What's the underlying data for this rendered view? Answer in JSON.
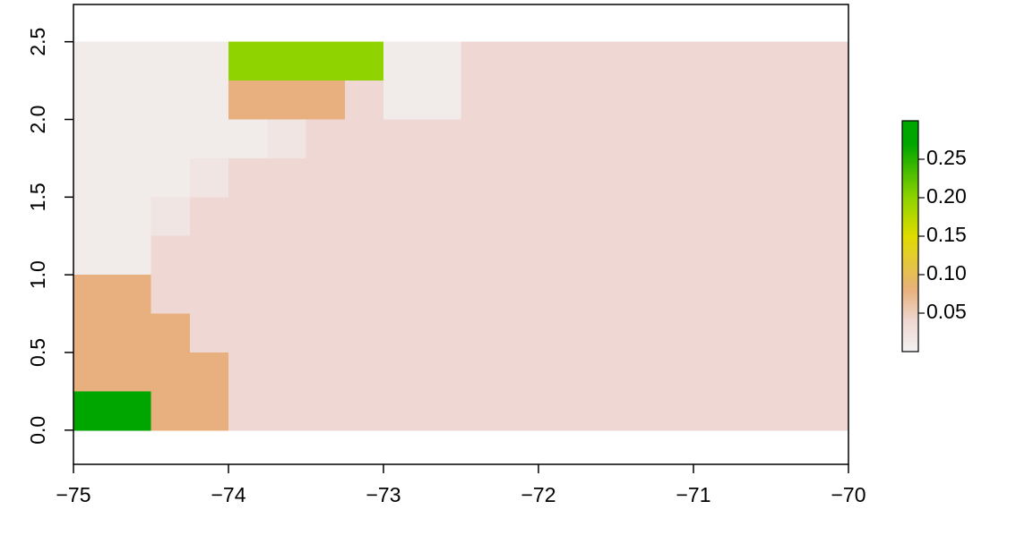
{
  "chart_data": {
    "type": "heatmap",
    "x": [
      -74.875,
      -74.625,
      -74.375,
      -74.125,
      -73.875,
      -73.625,
      -73.375,
      -73.125,
      -72.875,
      -72.625,
      -72.375,
      -72.125,
      -71.875,
      -71.625,
      -71.375,
      -71.125,
      -70.875,
      -70.625,
      -70.375,
      -70.125
    ],
    "y": [
      2.375,
      2.125,
      1.875,
      1.625,
      1.375,
      1.125,
      0.875,
      0.625,
      0.375,
      0.125
    ],
    "values": [
      [
        0.01,
        0.01,
        0.01,
        0.01,
        0.2,
        0.2,
        0.2,
        0.2,
        0.01,
        0.01,
        0.04,
        0.04,
        0.04,
        0.04,
        0.04,
        0.04,
        0.04,
        0.04,
        0.04,
        0.04
      ],
      [
        0.01,
        0.01,
        0.01,
        0.01,
        0.08,
        0.08,
        0.08,
        0.04,
        0.01,
        0.01,
        0.04,
        0.04,
        0.04,
        0.04,
        0.04,
        0.04,
        0.04,
        0.04,
        0.04,
        0.04
      ],
      [
        0.01,
        0.01,
        0.01,
        0.01,
        0.01,
        0.02,
        0.04,
        0.04,
        0.04,
        0.04,
        0.04,
        0.04,
        0.04,
        0.04,
        0.04,
        0.04,
        0.04,
        0.04,
        0.04,
        0.04
      ],
      [
        0.01,
        0.01,
        0.01,
        0.02,
        0.04,
        0.04,
        0.04,
        0.04,
        0.04,
        0.04,
        0.04,
        0.04,
        0.04,
        0.04,
        0.04,
        0.04,
        0.04,
        0.04,
        0.04,
        0.04
      ],
      [
        0.01,
        0.01,
        0.02,
        0.04,
        0.04,
        0.04,
        0.04,
        0.04,
        0.04,
        0.04,
        0.04,
        0.04,
        0.04,
        0.04,
        0.04,
        0.04,
        0.04,
        0.04,
        0.04,
        0.04
      ],
      [
        0.01,
        0.01,
        0.04,
        0.04,
        0.04,
        0.04,
        0.04,
        0.04,
        0.04,
        0.04,
        0.04,
        0.04,
        0.04,
        0.04,
        0.04,
        0.04,
        0.04,
        0.04,
        0.04,
        0.04
      ],
      [
        0.08,
        0.08,
        0.04,
        0.04,
        0.04,
        0.04,
        0.04,
        0.04,
        0.04,
        0.04,
        0.04,
        0.04,
        0.04,
        0.04,
        0.04,
        0.04,
        0.04,
        0.04,
        0.04,
        0.04
      ],
      [
        0.08,
        0.08,
        0.08,
        0.04,
        0.04,
        0.04,
        0.04,
        0.04,
        0.04,
        0.04,
        0.04,
        0.04,
        0.04,
        0.04,
        0.04,
        0.04,
        0.04,
        0.04,
        0.04,
        0.04
      ],
      [
        0.08,
        0.08,
        0.08,
        0.08,
        0.04,
        0.04,
        0.04,
        0.04,
        0.04,
        0.04,
        0.04,
        0.04,
        0.04,
        0.04,
        0.04,
        0.04,
        0.04,
        0.04,
        0.04,
        0.04
      ],
      [
        0.27,
        0.27,
        0.08,
        0.08,
        0.04,
        0.04,
        0.04,
        0.04,
        0.04,
        0.04,
        0.04,
        0.04,
        0.04,
        0.04,
        0.04,
        0.04,
        0.04,
        0.04,
        0.04,
        0.04
      ]
    ],
    "xlim": [
      -75,
      -70
    ],
    "ylim": [
      -0.22,
      2.74
    ],
    "xticks": [
      {
        "value": -75,
        "label": "−75"
      },
      {
        "value": -74,
        "label": "−74"
      },
      {
        "value": -73,
        "label": "−73"
      },
      {
        "value": -72,
        "label": "−72"
      },
      {
        "value": -71,
        "label": "−71"
      },
      {
        "value": -70,
        "label": "−70"
      }
    ],
    "yticks": [
      {
        "value": 0,
        "label": "0.0"
      },
      0.5,
      {
        "value": 1,
        "label": "1.0"
      },
      1.5,
      {
        "value": 2,
        "label": "2.0"
      },
      2.5
    ],
    "colorbar_lim": [
      0,
      0.3
    ],
    "colorbar_ticks": [
      0.05,
      {
        "value": 0.1,
        "label": "0.10"
      },
      0.15,
      {
        "value": 0.2,
        "label": "0.20"
      },
      0.25
    ],
    "colorscale": [
      [
        0,
        "#f2f2f2"
      ],
      [
        0.04,
        "#efd8d3"
      ],
      [
        0.08,
        "#e8b07e"
      ],
      [
        0.15,
        "#e0dc00"
      ],
      [
        0.2,
        "#8fd300"
      ],
      [
        0.27,
        "#00a600"
      ],
      [
        0.3,
        "#00a600"
      ]
    ]
  }
}
